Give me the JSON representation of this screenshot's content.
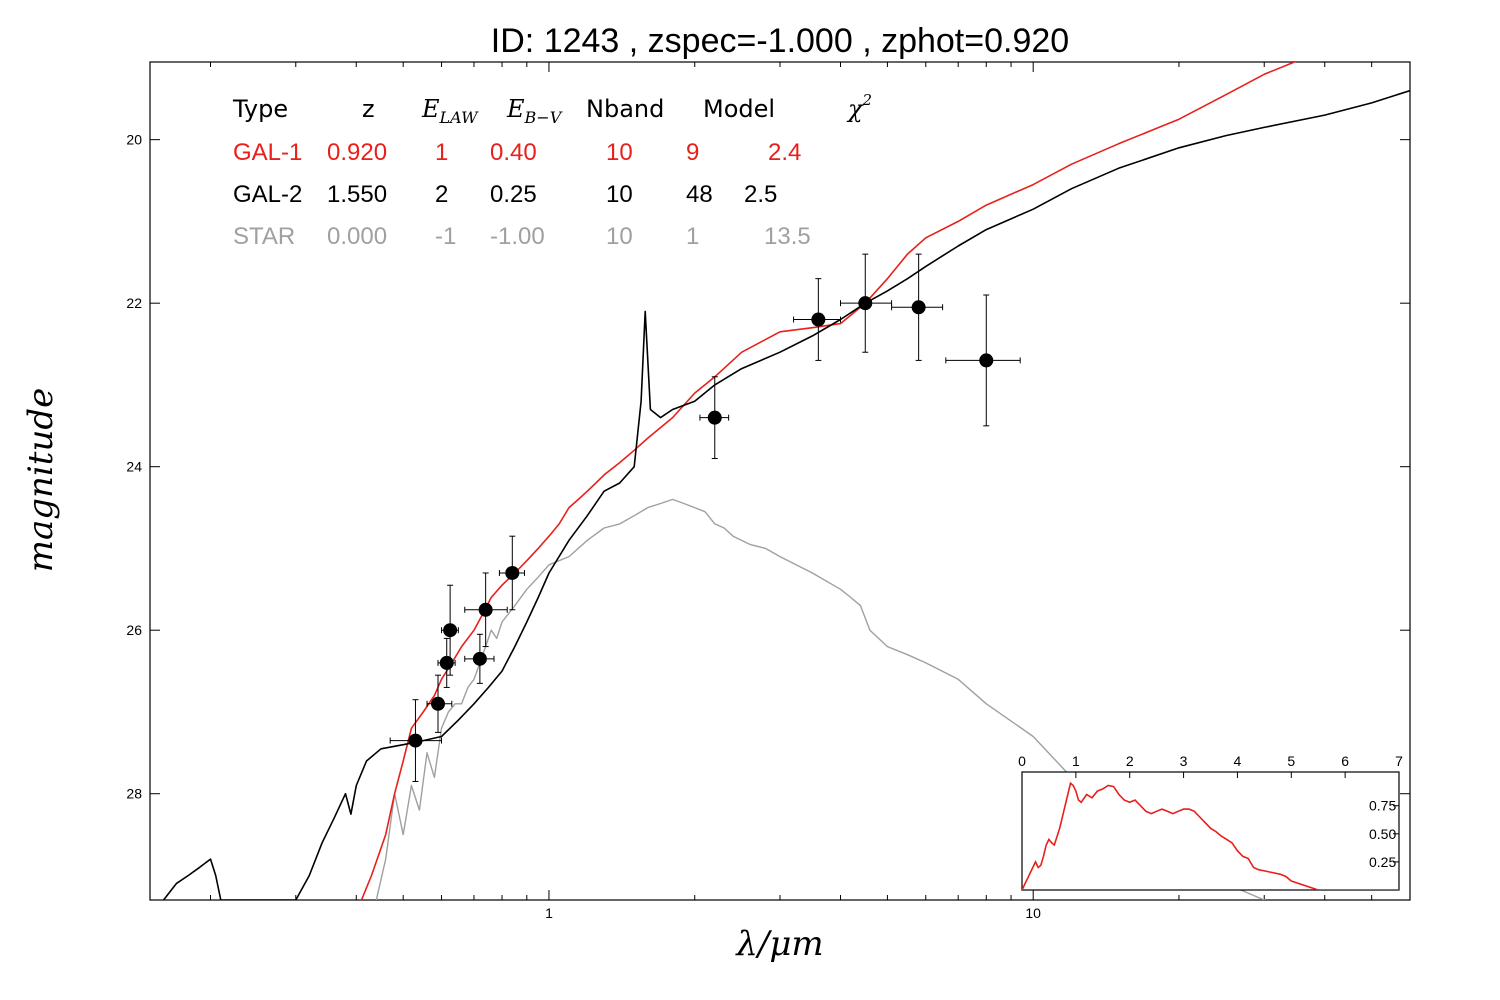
{
  "chart_data": {
    "type": "line",
    "title": "ID:  1243  , zspec=-1.000 , zphot=0.920",
    "xlabel": "λ/μm",
    "ylabel": "magnitude",
    "x_scale": "log",
    "xlim": [
      0.15,
      60
    ],
    "ylim": [
      29.3,
      19.05
    ],
    "y_inverted": true,
    "x_ticks": [
      {
        "value": 1,
        "label": "1"
      },
      {
        "value": 10,
        "label": "10"
      }
    ],
    "y_ticks": [
      {
        "value": 20,
        "label": "20"
      },
      {
        "value": 22,
        "label": "22"
      },
      {
        "value": 24,
        "label": "24"
      },
      {
        "value": 26,
        "label": "26"
      },
      {
        "value": 28,
        "label": "28"
      }
    ],
    "legend_table": {
      "headers": [
        "Type",
        "z",
        "E_LAW",
        "E_B−V",
        "Nband",
        "Model",
        "χ²"
      ],
      "rows": [
        {
          "type": "GAL-1",
          "z": "0.920",
          "elaw": "1",
          "ebv": "0.40",
          "nband": "10",
          "model": "9",
          "chi2": "2.4",
          "color": "#e8201b"
        },
        {
          "type": "GAL-2",
          "z": "1.550",
          "elaw": "2",
          "ebv": "0.25",
          "nband": "10",
          "model": "48",
          "chi2": "2.5",
          "color": "#000000"
        },
        {
          "type": "STAR",
          "z": "0.000",
          "elaw": "-1",
          "ebv": "-1.00",
          "nband": "10",
          "model": "1",
          "chi2": "13.5",
          "color": "#a0a0a0"
        }
      ]
    },
    "series": [
      {
        "name": "GAL-1",
        "color": "#e8201b",
        "x": [
          0.41,
          0.43,
          0.46,
          0.48,
          0.5,
          0.52,
          0.55,
          0.58,
          0.6,
          0.63,
          0.66,
          0.7,
          0.73,
          0.76,
          0.8,
          0.85,
          0.9,
          0.95,
          1.0,
          1.05,
          1.1,
          1.15,
          1.2,
          1.25,
          1.3,
          1.4,
          1.5,
          1.6,
          1.8,
          2.0,
          2.2,
          2.5,
          3.0,
          3.5,
          4.0,
          4.5,
          5.0,
          5.5,
          6.0,
          7.0,
          8.0,
          10.0,
          12.0,
          15.0,
          20.0,
          25.0,
          30.0,
          40.0,
          50.0
        ],
        "y": [
          29.3,
          29.0,
          28.5,
          28.0,
          27.6,
          27.2,
          27.0,
          26.8,
          26.6,
          26.4,
          26.2,
          26.0,
          25.8,
          25.6,
          25.45,
          25.3,
          25.15,
          25.0,
          24.85,
          24.7,
          24.5,
          24.4,
          24.3,
          24.2,
          24.1,
          23.95,
          23.8,
          23.65,
          23.4,
          23.1,
          22.9,
          22.6,
          22.35,
          22.3,
          22.25,
          22.0,
          21.7,
          21.4,
          21.2,
          21.0,
          20.8,
          20.55,
          20.3,
          20.05,
          19.75,
          19.45,
          19.2,
          18.9,
          18.6
        ]
      },
      {
        "name": "GAL-2",
        "color": "#000000",
        "x": [
          0.16,
          0.17,
          0.18,
          0.19,
          0.2,
          0.205,
          0.21,
          0.25,
          0.3,
          0.32,
          0.34,
          0.36,
          0.38,
          0.39,
          0.4,
          0.42,
          0.45,
          0.5,
          0.55,
          0.6,
          0.65,
          0.7,
          0.75,
          0.8,
          0.85,
          0.9,
          0.95,
          1.0,
          1.1,
          1.2,
          1.3,
          1.4,
          1.5,
          1.55,
          1.58,
          1.62,
          1.7,
          1.8,
          2.0,
          2.2,
          2.5,
          3.0,
          3.5,
          4.0,
          4.5,
          5.0,
          5.5,
          6.0,
          7.0,
          8.0,
          10.0,
          12.0,
          15.0,
          20.0,
          25.0,
          30.0,
          40.0,
          50.0,
          60.0
        ],
        "y": [
          29.3,
          29.1,
          29.0,
          28.9,
          28.8,
          29.0,
          29.3,
          29.3,
          29.3,
          29.0,
          28.6,
          28.3,
          28.0,
          28.25,
          27.9,
          27.6,
          27.45,
          27.4,
          27.35,
          27.3,
          27.1,
          26.9,
          26.7,
          26.5,
          26.2,
          25.9,
          25.6,
          25.3,
          24.9,
          24.6,
          24.3,
          24.2,
          24.0,
          23.2,
          22.1,
          23.3,
          23.4,
          23.3,
          23.2,
          23.0,
          22.8,
          22.6,
          22.4,
          22.2,
          22.0,
          21.85,
          21.7,
          21.55,
          21.3,
          21.1,
          20.85,
          20.6,
          20.35,
          20.1,
          19.95,
          19.85,
          19.7,
          19.55,
          19.4
        ]
      },
      {
        "name": "STAR",
        "color": "#a0a0a0",
        "x": [
          0.44,
          0.46,
          0.48,
          0.5,
          0.52,
          0.54,
          0.56,
          0.58,
          0.6,
          0.62,
          0.64,
          0.66,
          0.68,
          0.7,
          0.72,
          0.74,
          0.76,
          0.78,
          0.8,
          0.85,
          0.9,
          0.95,
          1.0,
          1.1,
          1.2,
          1.3,
          1.4,
          1.5,
          1.6,
          1.7,
          1.8,
          1.9,
          2.0,
          2.1,
          2.2,
          2.3,
          2.4,
          2.6,
          2.8,
          3.0,
          3.5,
          4.0,
          4.2,
          4.4,
          4.6,
          5.0,
          5.5,
          6.0,
          7.0,
          8.0,
          10.0,
          12.0,
          15.0,
          20.0,
          25.0,
          30.0,
          35.0,
          40.0
        ],
        "y": [
          29.3,
          28.8,
          28.0,
          28.5,
          27.9,
          28.2,
          27.5,
          27.8,
          27.2,
          27.0,
          26.9,
          26.9,
          26.7,
          26.6,
          26.4,
          26.2,
          26.0,
          26.1,
          25.9,
          25.7,
          25.5,
          25.35,
          25.2,
          25.1,
          24.9,
          24.75,
          24.7,
          24.6,
          24.5,
          24.45,
          24.4,
          24.45,
          24.5,
          24.55,
          24.7,
          24.75,
          24.85,
          24.95,
          25.0,
          25.1,
          25.3,
          25.5,
          25.6,
          25.7,
          26.0,
          26.2,
          26.3,
          26.4,
          26.6,
          26.9,
          27.3,
          27.8,
          28.2,
          28.8,
          29.1,
          29.3,
          29.5,
          29.8
        ]
      }
    ],
    "observations": {
      "color": "#000000",
      "points": [
        {
          "x": 0.53,
          "y": 27.35,
          "x_lo": 0.47,
          "x_hi": 0.6,
          "y_err": 0.5
        },
        {
          "x": 0.59,
          "y": 26.9,
          "x_lo": 0.56,
          "x_hi": 0.63,
          "y_err": 0.35
        },
        {
          "x": 0.615,
          "y": 26.4,
          "x_lo": 0.59,
          "x_hi": 0.64,
          "y_err": 0.3
        },
        {
          "x": 0.625,
          "y": 26.0,
          "x_lo": 0.6,
          "x_hi": 0.65,
          "y_err": 0.55
        },
        {
          "x": 0.72,
          "y": 26.35,
          "x_lo": 0.67,
          "x_hi": 0.77,
          "y_err": 0.3
        },
        {
          "x": 0.74,
          "y": 25.75,
          "x_lo": 0.67,
          "x_hi": 0.82,
          "y_err": 0.45
        },
        {
          "x": 0.84,
          "y": 25.3,
          "x_lo": 0.79,
          "x_hi": 0.89,
          "y_err": 0.45
        },
        {
          "x": 2.2,
          "y": 23.4,
          "x_lo": 2.05,
          "x_hi": 2.35,
          "y_err": 0.5
        },
        {
          "x": 3.6,
          "y": 22.2,
          "x_lo": 3.2,
          "x_hi": 4.0,
          "y_err": 0.5
        },
        {
          "x": 4.5,
          "y": 22.0,
          "x_lo": 4.0,
          "x_hi": 5.1,
          "y_err": 0.6
        },
        {
          "x": 5.8,
          "y": 22.05,
          "x_lo": 5.1,
          "x_hi": 6.5,
          "y_err": 0.65
        },
        {
          "x": 8.0,
          "y": 22.7,
          "x_lo": 6.6,
          "x_hi": 9.4,
          "y_err": 0.8
        }
      ]
    },
    "inset": {
      "type": "line",
      "color": "#e8201b",
      "xlim": [
        0,
        7
      ],
      "ylim": [
        0,
        1.05
      ],
      "x_ticks": [
        "0",
        "1",
        "2",
        "3",
        "4",
        "5",
        "6",
        "7"
      ],
      "y_ticks": [
        {
          "value": 0.25,
          "label": "0.25"
        },
        {
          "value": 0.5,
          "label": "0.50"
        },
        {
          "value": 0.75,
          "label": "0.75"
        }
      ],
      "x": [
        0.0,
        0.05,
        0.1,
        0.15,
        0.2,
        0.25,
        0.3,
        0.35,
        0.4,
        0.45,
        0.5,
        0.55,
        0.6,
        0.7,
        0.8,
        0.85,
        0.9,
        0.95,
        1.0,
        1.05,
        1.1,
        1.2,
        1.3,
        1.4,
        1.5,
        1.6,
        1.7,
        1.8,
        1.9,
        2.0,
        2.1,
        2.2,
        2.3,
        2.4,
        2.5,
        2.6,
        2.7,
        2.8,
        2.9,
        3.0,
        3.1,
        3.2,
        3.3,
        3.4,
        3.5,
        3.6,
        3.7,
        3.8,
        3.9,
        4.0,
        4.1,
        4.2,
        4.3,
        4.4,
        4.5,
        4.6,
        4.7,
        4.8,
        4.9,
        5.0,
        5.5,
        6.0,
        6.5,
        7.0
      ],
      "y": [
        0.0,
        0.05,
        0.1,
        0.15,
        0.2,
        0.25,
        0.2,
        0.22,
        0.3,
        0.4,
        0.45,
        0.42,
        0.4,
        0.55,
        0.75,
        0.85,
        0.95,
        0.93,
        0.88,
        0.8,
        0.78,
        0.85,
        0.82,
        0.88,
        0.9,
        0.93,
        0.92,
        0.85,
        0.8,
        0.78,
        0.8,
        0.75,
        0.7,
        0.68,
        0.7,
        0.72,
        0.7,
        0.68,
        0.7,
        0.72,
        0.72,
        0.7,
        0.65,
        0.6,
        0.55,
        0.52,
        0.48,
        0.45,
        0.42,
        0.35,
        0.3,
        0.28,
        0.2,
        0.18,
        0.17,
        0.16,
        0.15,
        0.14,
        0.12,
        0.08,
        0.0,
        0.0,
        0.0,
        0.0
      ]
    }
  }
}
